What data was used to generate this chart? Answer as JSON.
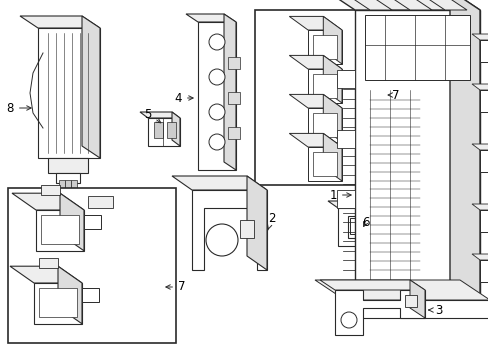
{
  "background_color": "#ffffff",
  "line_color": "#2a2a2a",
  "label_color": "#000000",
  "figure_width": 4.89,
  "figure_height": 3.6,
  "dpi": 100
}
